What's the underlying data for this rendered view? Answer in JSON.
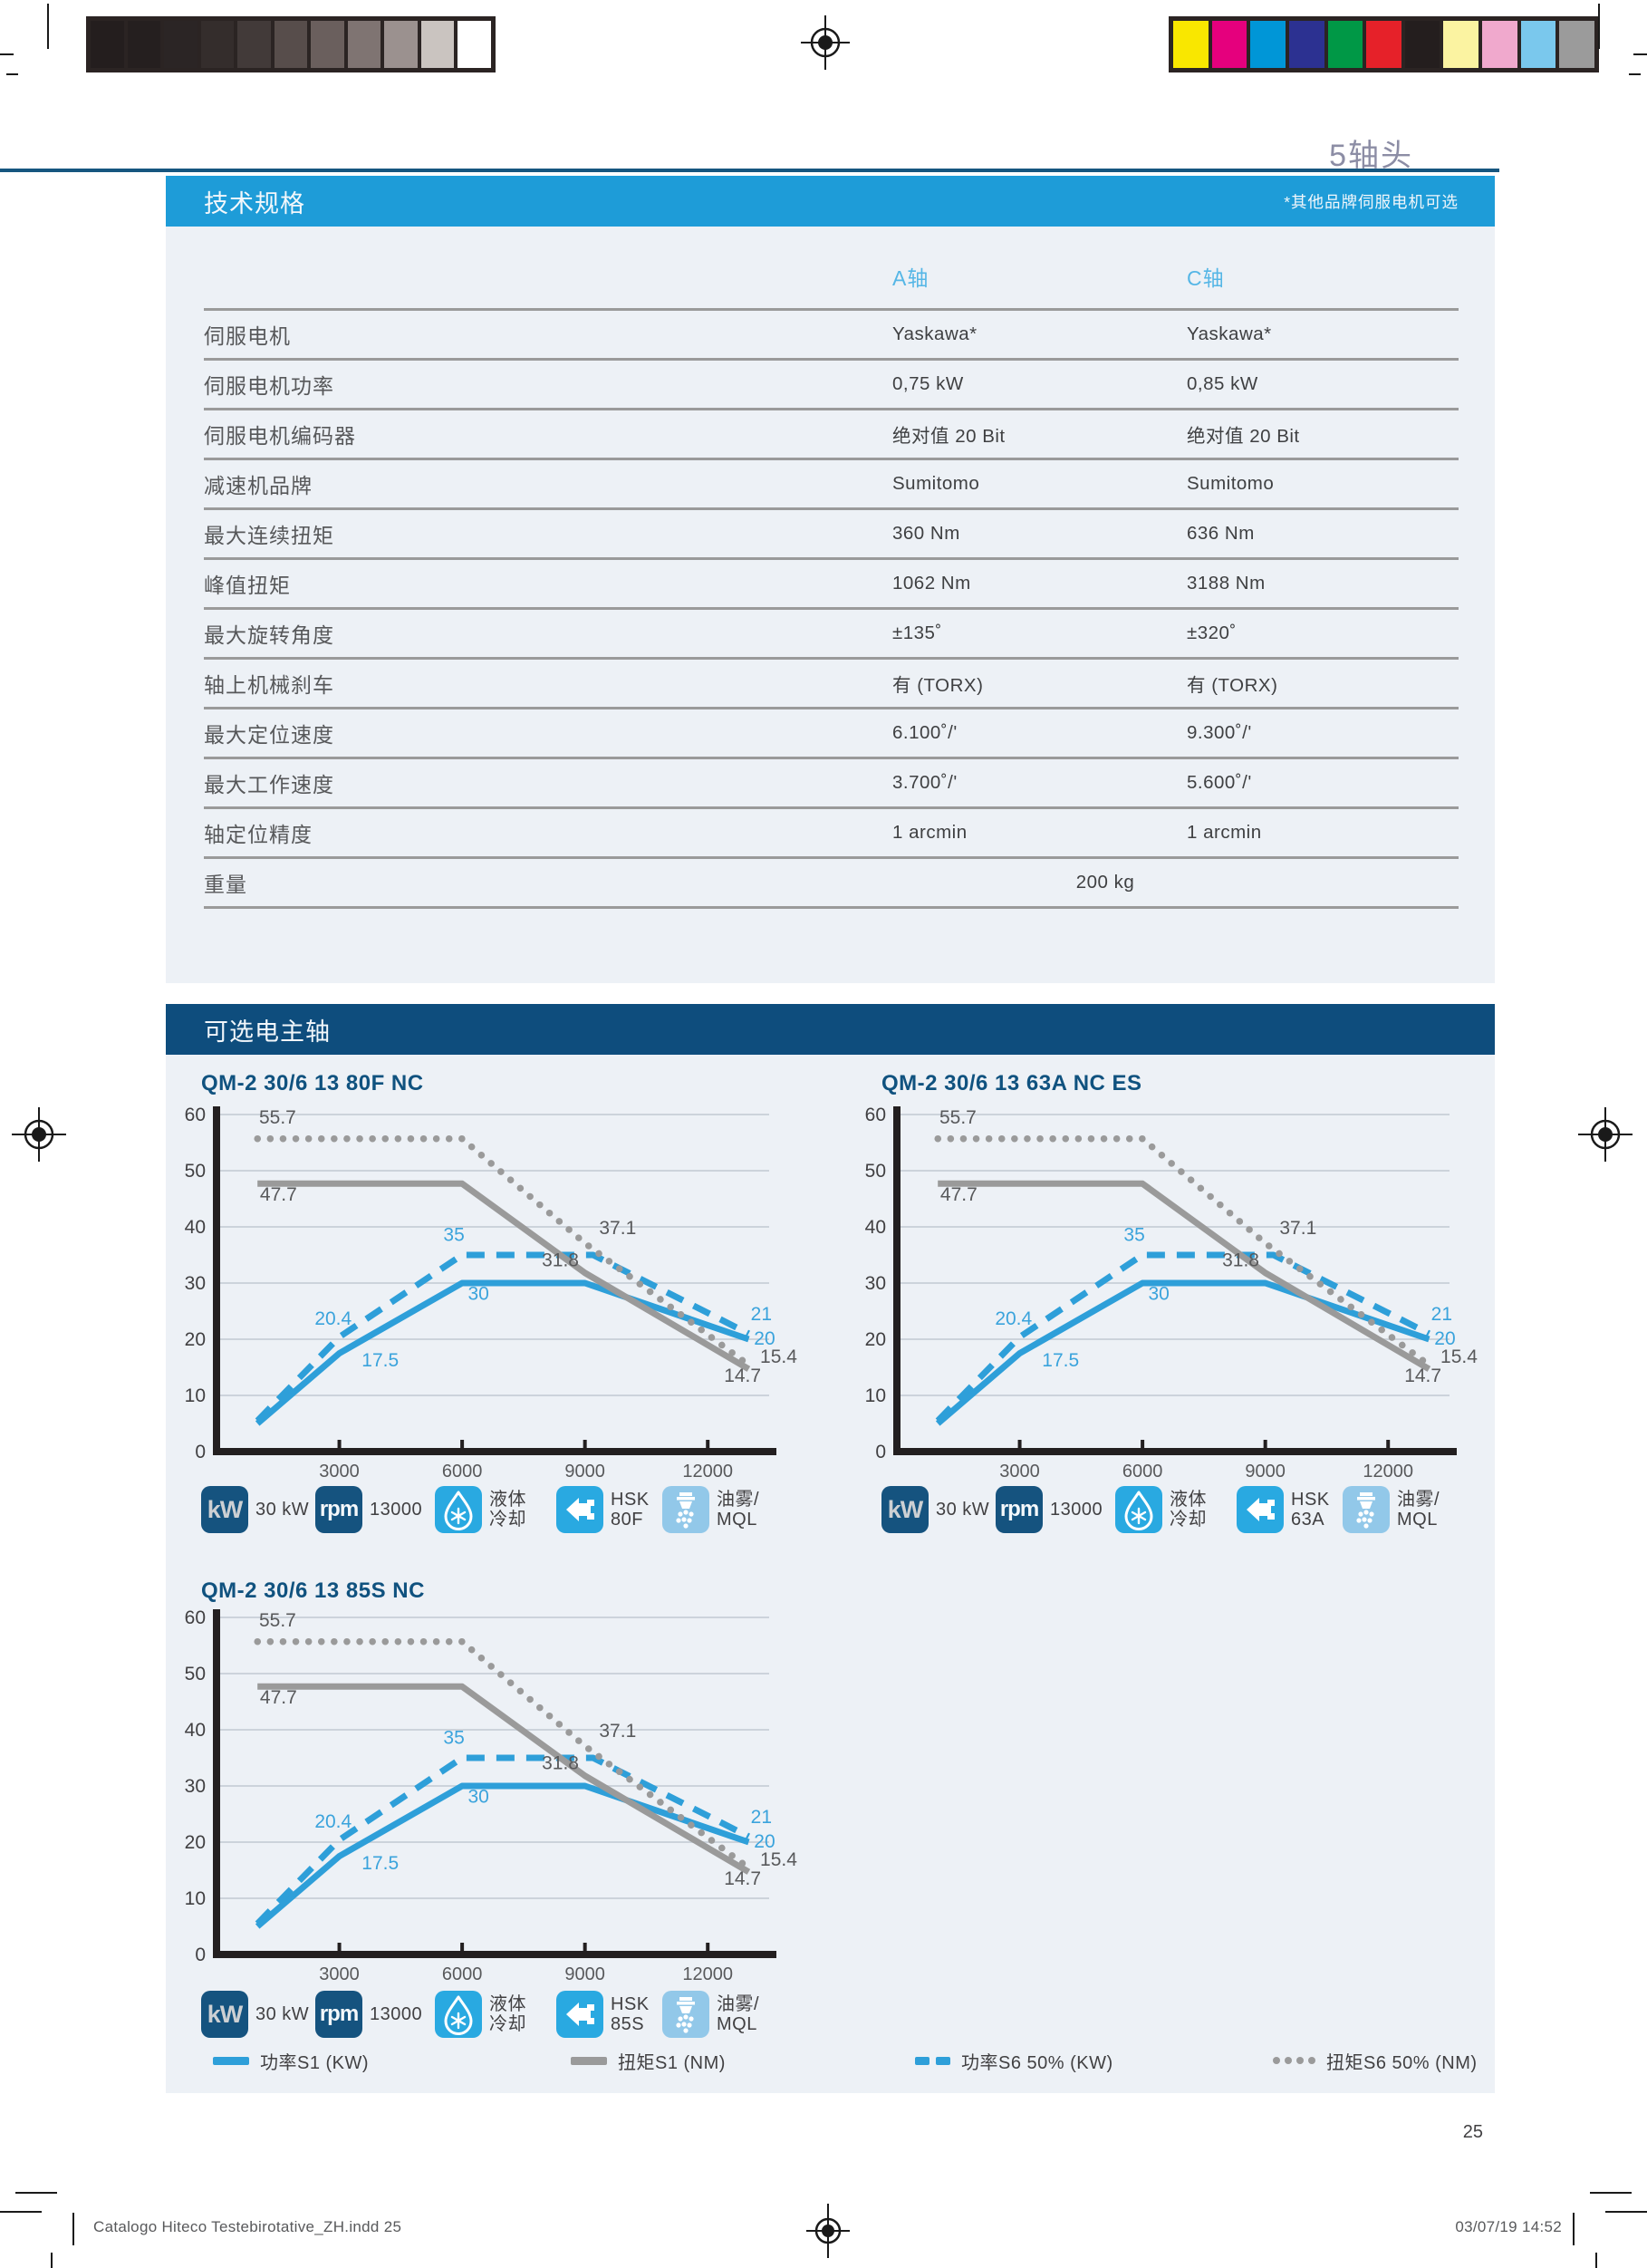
{
  "page": {
    "header_title": "5轴头",
    "number": "25"
  },
  "print_marks": {
    "grayscale": [
      "#241e1e",
      "#251f1f",
      "#2b2525",
      "#342d2c",
      "#423a39",
      "#574d4b",
      "#6a5f5d",
      "#7f7472",
      "#9b918f",
      "#cac4c0",
      "#ffffff"
    ],
    "colors": [
      "#f9e700",
      "#e5007d",
      "#0096d7",
      "#2c3191",
      "#009846",
      "#e62129",
      "#241e1e",
      "#fbf3a1",
      "#f0a9cd",
      "#7ac8ed",
      "#9b9b9b"
    ]
  },
  "spec_section": {
    "header": "技术规格",
    "note": "*其他品牌伺服电机可选",
    "columns": [
      "A轴",
      "C轴"
    ],
    "rows": [
      {
        "label": "伺服电机",
        "a": "Yaskawa*",
        "c": "Yaskawa*"
      },
      {
        "label": "伺服电机功率",
        "a": "0,75 kW",
        "c": "0,85 kW"
      },
      {
        "label": "伺服电机编码器",
        "a": "绝对值 20 Bit",
        "c": "绝对值 20 Bit"
      },
      {
        "label": "减速机品牌",
        "a": "Sumitomo",
        "c": "Sumitomo"
      },
      {
        "label": "最大连续扭矩",
        "a": "360 Nm",
        "c": "636 Nm"
      },
      {
        "label": "峰值扭矩",
        "a": "1062 Nm",
        "c": "3188 Nm"
      },
      {
        "label": "最大旋转角度",
        "a": "±135˚",
        "c": "±320˚"
      },
      {
        "label": "轴上机械刹车",
        "a": "有 (TORX)",
        "c": "有 (TORX)"
      },
      {
        "label": "最大定位速度",
        "a": "6.100˚/'",
        "c": "9.300˚/'"
      },
      {
        "label": "最大工作速度",
        "a": "3.700˚/'",
        "c": "5.600˚/'"
      },
      {
        "label": "轴定位精度",
        "a": "1 arcmin",
        "c": "1 arcmin"
      },
      {
        "label": "重量",
        "span": "200 kg"
      }
    ]
  },
  "spindle_section": {
    "header": "可选电主轴",
    "icon_glyph_kw": "kW",
    "icon_glyph_rpm": "rpm",
    "charts": [
      {
        "title": "QM-2 30/6 13 80F NC",
        "icons": {
          "kw_value": "30 kW",
          "rpm_value": "13000",
          "cooling_label": "液体\n冷却",
          "holder_label": "HSK\n80F",
          "mql_label": "油雾/\nMQL"
        }
      },
      {
        "title": "QM-2 30/6 13 63A NC ES",
        "icons": {
          "kw_value": "30 kW",
          "rpm_value": "13000",
          "cooling_label": "液体\n冷却",
          "holder_label": "HSK\n63A",
          "mql_label": "油雾/\nMQL"
        }
      },
      {
        "title": "QM-2 30/6 13 85S NC",
        "icons": {
          "kw_value": "30 kW",
          "rpm_value": "13000",
          "cooling_label": "液体\n冷却",
          "holder_label": "HSK\n85S",
          "mql_label": "油雾/\nMQL"
        }
      }
    ],
    "legend": [
      {
        "label": "功率S1 (KW)",
        "style": "blue-solid"
      },
      {
        "label": "扭矩S1 (NM)",
        "style": "gray-solid"
      },
      {
        "label": "功率S6 50% (KW)",
        "style": "blue-dashed"
      },
      {
        "label": "扭矩S6 50% (NM)",
        "style": "gray-dotted"
      }
    ]
  },
  "chart_data": {
    "type": "line",
    "note": "identical curves shown in all three spindle charts",
    "xlim": [
      0,
      13500
    ],
    "ylim": [
      0,
      60
    ],
    "xticks": [
      3000,
      6000,
      9000,
      12000
    ],
    "yticks": [
      0,
      10,
      20,
      30,
      40,
      50,
      60
    ],
    "grid": true,
    "colors": {
      "axis": "#231f20",
      "grid": "#ccd3db",
      "blue": "#2e9fd9",
      "gray": "#9a9a9a"
    },
    "series": [
      {
        "id": "power-s1",
        "name": "功率S1 (KW)",
        "color": "#2e9fd9",
        "style": "solid",
        "points": [
          [
            1000,
            5
          ],
          [
            3000,
            17.5
          ],
          [
            6000,
            30
          ],
          [
            9000,
            30
          ],
          [
            13000,
            20
          ]
        ]
      },
      {
        "id": "power-s6",
        "name": "功率S6 50% (KW)",
        "color": "#2e9fd9",
        "style": "dashed",
        "points": [
          [
            1000,
            5.5
          ],
          [
            3000,
            20.4
          ],
          [
            6000,
            35
          ],
          [
            9200,
            35
          ],
          [
            13000,
            21
          ]
        ]
      },
      {
        "id": "torque-s1",
        "name": "扭矩S1 (NM)",
        "color": "#9a9a9a",
        "style": "solid",
        "points": [
          [
            1000,
            47.7
          ],
          [
            6000,
            47.7
          ],
          [
            9000,
            31.8
          ],
          [
            13000,
            14.7
          ]
        ]
      },
      {
        "id": "torque-s6",
        "name": "扭矩S6 50% (NM)",
        "color": "#9a9a9a",
        "style": "dotted",
        "points": [
          [
            1000,
            55.7
          ],
          [
            6000,
            55.7
          ],
          [
            9000,
            37.1
          ],
          [
            13000,
            15.4
          ]
        ]
      }
    ],
    "point_labels": [
      {
        "text": "55.7",
        "x": 1040,
        "y": 58.4,
        "cls": "pl-dark",
        "anchor": "start"
      },
      {
        "text": "47.7",
        "x": 1060,
        "y": 44.7,
        "cls": "pl-dark",
        "anchor": "start"
      },
      {
        "text": "20.4",
        "x": 2850,
        "y": 22.6,
        "cls": "pl-blue",
        "anchor": "middle"
      },
      {
        "text": "17.5",
        "x": 4000,
        "y": 15.2,
        "cls": "pl-blue",
        "anchor": "middle"
      },
      {
        "text": "35",
        "x": 5800,
        "y": 37.5,
        "cls": "pl-blue",
        "anchor": "middle"
      },
      {
        "text": "30",
        "x": 6400,
        "y": 27.0,
        "cls": "pl-blue",
        "anchor": "middle"
      },
      {
        "text": "31.8",
        "x": 8400,
        "y": 33.0,
        "cls": "pl-dark",
        "anchor": "middle"
      },
      {
        "text": "37.1",
        "x": 9800,
        "y": 38.7,
        "cls": "pl-dark",
        "anchor": "middle"
      },
      {
        "text": "21",
        "x": 13050,
        "y": 23.4,
        "cls": "pl-blue",
        "anchor": "start"
      },
      {
        "text": "20",
        "x": 13130,
        "y": 19.0,
        "cls": "pl-blue",
        "anchor": "start"
      },
      {
        "text": "15.4",
        "x": 13280,
        "y": 15.8,
        "cls": "pl-dark",
        "anchor": "start"
      },
      {
        "text": "14.7",
        "x": 12850,
        "y": 12.4,
        "cls": "pl-dark",
        "anchor": "middle"
      }
    ]
  },
  "footer": {
    "left": "Catalogo Hiteco Testebirotative_ZH.indd   25",
    "right": "03/07/19   14:52"
  }
}
